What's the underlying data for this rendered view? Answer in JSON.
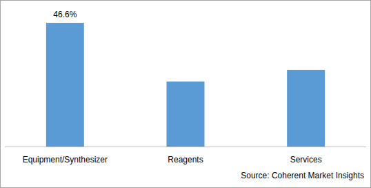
{
  "chart_data": {
    "type": "bar",
    "categories": [
      "Equipment/Synthesizer",
      "Reagents",
      "Services"
    ],
    "values": [
      46.6,
      24.5,
      28.9
    ],
    "value_labels": [
      "46.6%",
      null,
      null
    ],
    "data_labels": true,
    "color": "#5b9bd5",
    "ylim": [
      0,
      50
    ],
    "grid": false,
    "tick_labels": "x",
    "source": "Source: Coherent Market Insights"
  }
}
